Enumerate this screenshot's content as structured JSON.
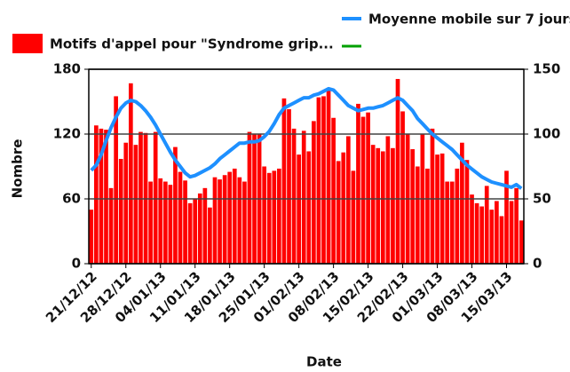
{
  "chart_data": {
    "type": "bar",
    "x_label": "Date",
    "y_label": "Nombre",
    "categories": [
      "21/12/12",
      null,
      null,
      null,
      null,
      null,
      null,
      "28/12/12",
      null,
      null,
      null,
      null,
      null,
      null,
      "04/01/13",
      null,
      null,
      null,
      null,
      null,
      null,
      "11/01/13",
      null,
      null,
      null,
      null,
      null,
      null,
      "18/01/13",
      null,
      null,
      null,
      null,
      null,
      null,
      "25/01/13",
      null,
      null,
      null,
      null,
      null,
      null,
      "01/02/13",
      null,
      null,
      null,
      null,
      null,
      null,
      "08/02/13",
      null,
      null,
      null,
      null,
      null,
      null,
      "15/02/13",
      null,
      null,
      null,
      null,
      null,
      null,
      "22/02/13",
      null,
      null,
      null,
      null,
      null,
      null,
      "01/03/13",
      null,
      null,
      null,
      null,
      null,
      null,
      "08/03/13",
      null,
      null,
      null,
      null,
      null,
      null,
      "15/03/13",
      null,
      null,
      null
    ],
    "series": [
      {
        "name": "Motifs d'appel pour \"Syndrome grip...",
        "type": "bar",
        "color": "#ff0000",
        "values": [
          50,
          128,
          125,
          124,
          70,
          155,
          97,
          112,
          167,
          110,
          122,
          121,
          76,
          122,
          79,
          76,
          73,
          108,
          85,
          77,
          56,
          60,
          65,
          70,
          52,
          80,
          78,
          82,
          85,
          88,
          80,
          76,
          122,
          120,
          120,
          90,
          84,
          86,
          88,
          153,
          143,
          125,
          101,
          123,
          104,
          132,
          154,
          155,
          160,
          135,
          95,
          103,
          118,
          86,
          148,
          136,
          140,
          110,
          107,
          104,
          118,
          107,
          171,
          141,
          120,
          106,
          90,
          120,
          88,
          125,
          101,
          102,
          76,
          76,
          88,
          112,
          96,
          64,
          56,
          53,
          72,
          50,
          58,
          44,
          86,
          58,
          70,
          40
        ]
      },
      {
        "name": "Moyenne mobile sur 7 jours",
        "type": "line",
        "axis": "y2",
        "color": "#1e90ff",
        "values": [
          72,
          76,
          84,
          95,
          105,
          113,
          120,
          124,
          126,
          125,
          122,
          118,
          113,
          107,
          100,
          93,
          86,
          80,
          75,
          70,
          67,
          68,
          70,
          72,
          74,
          77,
          81,
          84,
          87,
          90,
          93,
          93,
          94,
          94,
          95,
          98,
          102,
          108,
          115,
          120,
          122,
          124,
          126,
          128,
          128,
          130,
          131,
          133,
          135,
          134,
          130,
          126,
          122,
          120,
          118,
          119,
          120,
          120,
          121,
          122,
          124,
          126,
          128,
          126,
          122,
          118,
          112,
          108,
          104,
          100,
          97,
          94,
          91,
          88,
          84,
          80,
          76,
          73,
          70,
          67,
          65,
          63,
          62,
          61,
          60,
          59,
          61,
          58
        ]
      }
    ],
    "ylim": [
      0,
      180
    ],
    "yticks": [
      0,
      60,
      120,
      180
    ],
    "y2lim": [
      0,
      150
    ],
    "y2ticks": [
      0,
      50,
      100,
      150
    ],
    "grid": true
  }
}
